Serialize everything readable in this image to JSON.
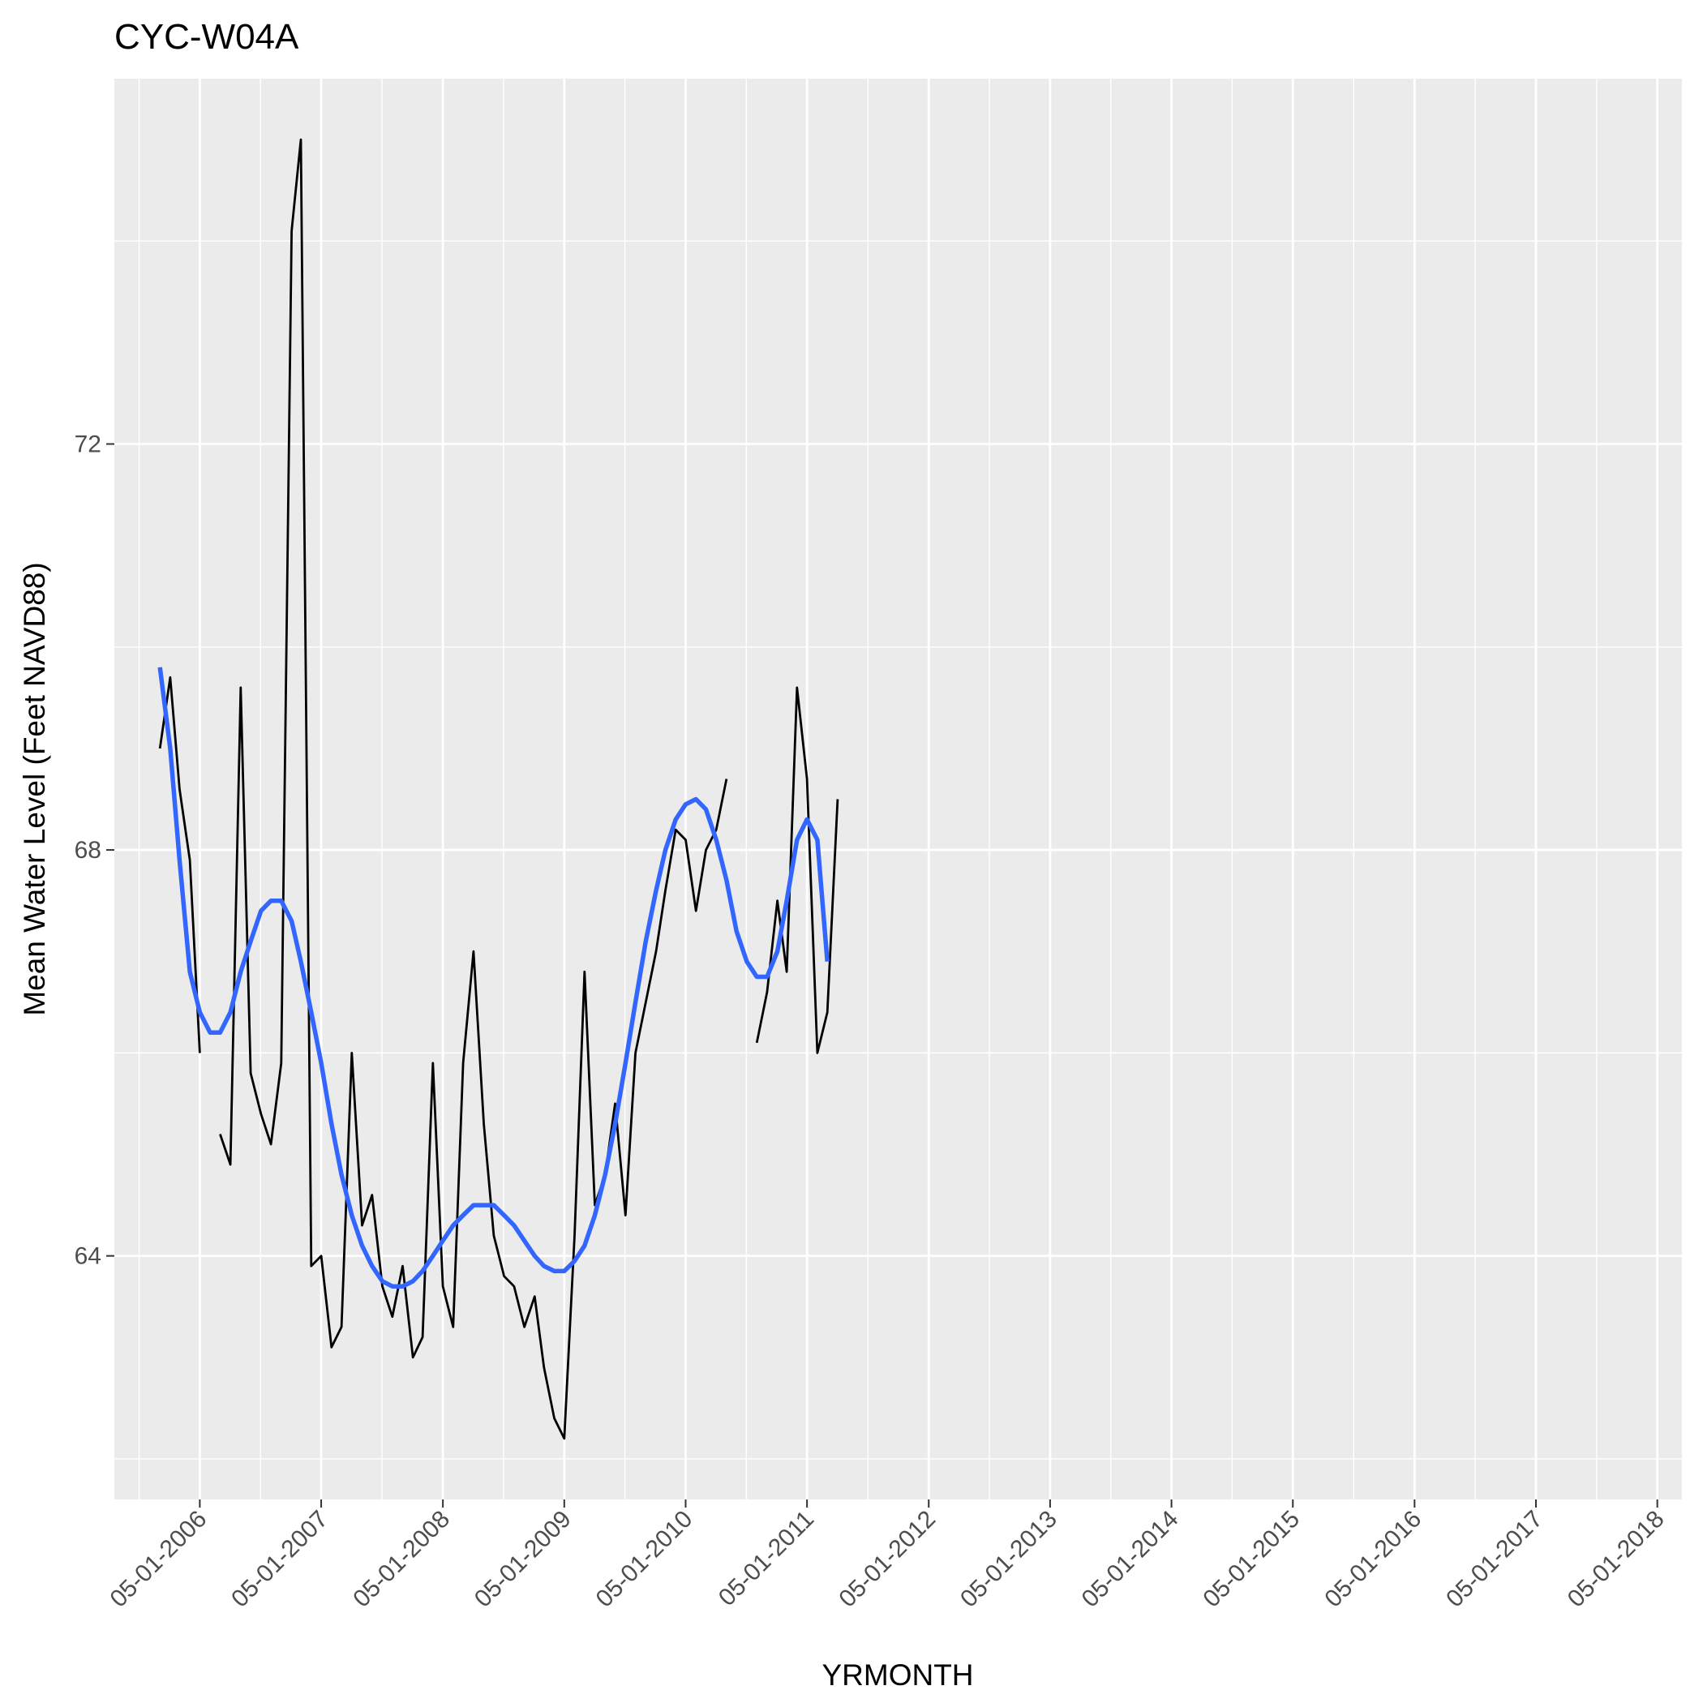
{
  "chart_data": {
    "type": "line",
    "title": "CYC-W04A",
    "xlabel": "YRMONTH",
    "ylabel": "Mean Water Level (Feet NAVD88)",
    "x_ticks": [
      "05-01-2006",
      "05-01-2007",
      "05-01-2008",
      "05-01-2009",
      "05-01-2010",
      "05-01-2011",
      "05-01-2012",
      "05-01-2013",
      "05-01-2014",
      "05-01-2015",
      "05-01-2016",
      "05-01-2017",
      "05-01-2018"
    ],
    "xlim": [
      "2005-08-17",
      "2018-07-14"
    ],
    "y_ticks": [
      64,
      68,
      72
    ],
    "ylim": [
      61.6,
      75.6
    ],
    "grid": true,
    "panel_background": "#EBEBEB",
    "series": [
      {
        "color": "#000000",
        "segments": [
          [
            [
              "2006-01-01",
              69.0
            ],
            [
              "2006-02-01",
              69.7
            ],
            [
              "2006-03-01",
              68.6
            ],
            [
              "2006-04-01",
              67.9
            ],
            [
              "2006-05-01",
              66.0
            ]
          ],
          [
            [
              "2006-07-01",
              65.2
            ],
            [
              "2006-08-01",
              64.9
            ],
            [
              "2006-09-01",
              69.6
            ],
            [
              "2006-10-01",
              65.8
            ],
            [
              "2006-11-01",
              65.4
            ],
            [
              "2006-12-01",
              65.1
            ],
            [
              "2007-01-01",
              65.9
            ],
            [
              "2007-02-01",
              74.1
            ],
            [
              "2007-03-01",
              75.0
            ],
            [
              "2007-04-01",
              63.9
            ],
            [
              "2007-05-01",
              64.0
            ],
            [
              "2007-06-01",
              63.1
            ],
            [
              "2007-07-01",
              63.3
            ],
            [
              "2007-08-01",
              66.0
            ],
            [
              "2007-09-01",
              64.3
            ],
            [
              "2007-10-01",
              64.6
            ],
            [
              "2007-11-01",
              63.7
            ],
            [
              "2007-12-01",
              63.4
            ],
            [
              "2008-01-01",
              63.9
            ],
            [
              "2008-02-01",
              63.0
            ],
            [
              "2008-03-01",
              63.2
            ],
            [
              "2008-04-01",
              65.9
            ],
            [
              "2008-05-01",
              63.7
            ],
            [
              "2008-06-01",
              63.3
            ],
            [
              "2008-07-01",
              65.9
            ],
            [
              "2008-08-01",
              67.0
            ],
            [
              "2008-09-01",
              65.3
            ],
            [
              "2008-10-01",
              64.2
            ],
            [
              "2008-11-01",
              63.8
            ],
            [
              "2008-12-01",
              63.7
            ],
            [
              "2009-01-01",
              63.3
            ],
            [
              "2009-02-01",
              63.6
            ],
            [
              "2009-03-01",
              62.9
            ],
            [
              "2009-04-01",
              62.4
            ],
            [
              "2009-05-01",
              62.2
            ],
            [
              "2009-06-01",
              64.2
            ],
            [
              "2009-07-01",
              66.8
            ],
            [
              "2009-08-01",
              64.5
            ],
            [
              "2009-09-01",
              64.8
            ],
            [
              "2009-10-01",
              65.5
            ],
            [
              "2009-11-01",
              64.4
            ],
            [
              "2009-12-01",
              66.0
            ],
            [
              "2010-01-01",
              66.5
            ],
            [
              "2010-02-01",
              67.0
            ],
            [
              "2010-03-01",
              67.6
            ],
            [
              "2010-04-01",
              68.2
            ],
            [
              "2010-05-01",
              68.1
            ],
            [
              "2010-06-01",
              67.4
            ],
            [
              "2010-07-01",
              68.0
            ],
            [
              "2010-08-01",
              68.2
            ],
            [
              "2010-09-01",
              68.7
            ]
          ],
          [
            [
              "2010-12-01",
              66.1
            ],
            [
              "2011-01-01",
              66.6
            ],
            [
              "2011-02-01",
              67.5
            ],
            [
              "2011-03-01",
              66.8
            ],
            [
              "2011-04-01",
              69.6
            ],
            [
              "2011-05-01",
              68.7
            ],
            [
              "2011-06-01",
              66.0
            ],
            [
              "2011-07-01",
              66.4
            ],
            [
              "2011-08-01",
              68.5
            ]
          ]
        ]
      },
      {
        "color": "#3366FF",
        "segments": [
          [
            [
              "2006-01-01",
              69.8
            ],
            [
              "2006-02-01",
              69.0
            ],
            [
              "2006-03-01",
              67.9
            ],
            [
              "2006-04-01",
              66.8
            ],
            [
              "2006-05-01",
              66.4
            ],
            [
              "2006-06-01",
              66.2
            ],
            [
              "2006-07-01",
              66.2
            ],
            [
              "2006-08-01",
              66.4
            ],
            [
              "2006-09-01",
              66.8
            ],
            [
              "2006-10-01",
              67.1
            ],
            [
              "2006-11-01",
              67.4
            ],
            [
              "2006-12-01",
              67.5
            ],
            [
              "2007-01-01",
              67.5
            ],
            [
              "2007-02-01",
              67.3
            ],
            [
              "2007-03-01",
              66.9
            ],
            [
              "2007-04-01",
              66.4
            ],
            [
              "2007-05-01",
              65.9
            ],
            [
              "2007-06-01",
              65.3
            ],
            [
              "2007-07-01",
              64.8
            ],
            [
              "2007-08-01",
              64.4
            ],
            [
              "2007-09-01",
              64.1
            ],
            [
              "2007-10-01",
              63.9
            ],
            [
              "2007-11-01",
              63.75
            ],
            [
              "2007-12-01",
              63.7
            ],
            [
              "2008-01-01",
              63.7
            ],
            [
              "2008-02-01",
              63.75
            ],
            [
              "2008-03-01",
              63.85
            ],
            [
              "2008-04-01",
              64.0
            ],
            [
              "2008-05-01",
              64.15
            ],
            [
              "2008-06-01",
              64.3
            ],
            [
              "2008-07-01",
              64.4
            ],
            [
              "2008-08-01",
              64.5
            ],
            [
              "2008-09-01",
              64.5
            ],
            [
              "2008-10-01",
              64.5
            ],
            [
              "2008-11-01",
              64.4
            ],
            [
              "2008-12-01",
              64.3
            ],
            [
              "2009-01-01",
              64.15
            ],
            [
              "2009-02-01",
              64.0
            ],
            [
              "2009-03-01",
              63.9
            ],
            [
              "2009-04-01",
              63.85
            ],
            [
              "2009-05-01",
              63.85
            ],
            [
              "2009-06-01",
              63.95
            ],
            [
              "2009-07-01",
              64.1
            ],
            [
              "2009-08-01",
              64.4
            ],
            [
              "2009-09-01",
              64.8
            ],
            [
              "2009-10-01",
              65.3
            ],
            [
              "2009-11-01",
              65.9
            ],
            [
              "2009-12-01",
              66.5
            ],
            [
              "2010-01-01",
              67.1
            ],
            [
              "2010-02-01",
              67.6
            ],
            [
              "2010-03-01",
              68.0
            ],
            [
              "2010-04-01",
              68.3
            ],
            [
              "2010-05-01",
              68.45
            ],
            [
              "2010-06-01",
              68.5
            ],
            [
              "2010-07-01",
              68.4
            ],
            [
              "2010-08-01",
              68.1
            ],
            [
              "2010-09-01",
              67.7
            ],
            [
              "2010-10-01",
              67.2
            ],
            [
              "2010-11-01",
              66.9
            ],
            [
              "2010-12-01",
              66.75
            ],
            [
              "2011-01-01",
              66.75
            ],
            [
              "2011-02-01",
              67.0
            ],
            [
              "2011-03-01",
              67.5
            ],
            [
              "2011-04-01",
              68.1
            ],
            [
              "2011-05-01",
              68.3
            ],
            [
              "2011-06-01",
              68.1
            ],
            [
              "2011-07-01",
              66.9
            ]
          ]
        ]
      }
    ]
  }
}
